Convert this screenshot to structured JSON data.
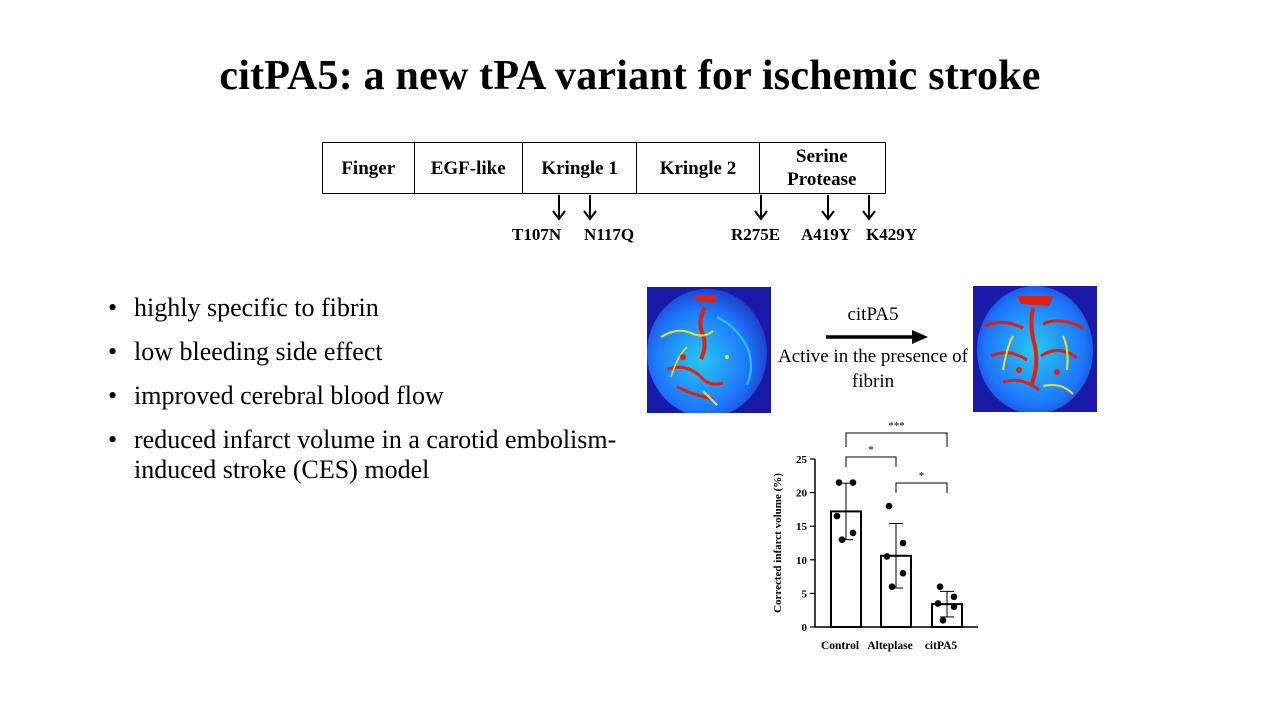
{
  "slide": {
    "title": "citPA5: a new tPA variant for ischemic stroke"
  },
  "domain_diagram": {
    "domains": [
      {
        "label": "Finger",
        "width_share": 92
      },
      {
        "label": "EGF-like",
        "width_share": 109
      },
      {
        "label": "Kringle 1",
        "width_share": 115
      },
      {
        "label": "Kringle 2",
        "width_share": 123
      },
      {
        "label": "Serine Protease",
        "width_share": 125
      }
    ],
    "mutations": [
      "T107N",
      "N117Q",
      "R275E",
      "A419Y",
      "K429Y"
    ]
  },
  "bullets": [
    "highly specific to fibrin",
    "low bleeding side effect",
    "improved cerebral blood flow",
    "reduced infarct volume in a carotid embolism-induced stroke (CES) model"
  ],
  "process": {
    "arrow_label": "citPA5",
    "condition": "Active in the presence of fibrin"
  },
  "chart_data": {
    "type": "bar",
    "categories": [
      "Control",
      "Alteplase",
      "citPA5"
    ],
    "values": [
      17.2,
      10.6,
      3.4
    ],
    "error": [
      4.2,
      4.8,
      1.9
    ],
    "points": [
      [
        21.5,
        21.5,
        16.5,
        14,
        13
      ],
      [
        18,
        12.5,
        10.5,
        8,
        6
      ],
      [
        6,
        4.5,
        3.5,
        3,
        1
      ]
    ],
    "ylabel": "Corrected infarct volume (%)",
    "xlabel": "",
    "ylim": [
      0,
      25
    ],
    "yticks": [
      0,
      5,
      10,
      15,
      20,
      25
    ],
    "significance": [
      {
        "from": 0,
        "to": 1,
        "label": "*"
      },
      {
        "from": 1,
        "to": 2,
        "label": "*"
      },
      {
        "from": 0,
        "to": 2,
        "label": "***"
      }
    ],
    "bar_fill": "#ffffff",
    "bar_stroke": "#000000"
  },
  "colors": {
    "text": "#000000",
    "background": "#ffffff",
    "angiogram_palette": [
      "#1a1aa8",
      "#1e78ff",
      "#28c8f0",
      "#f0e020",
      "#e02010"
    ]
  }
}
